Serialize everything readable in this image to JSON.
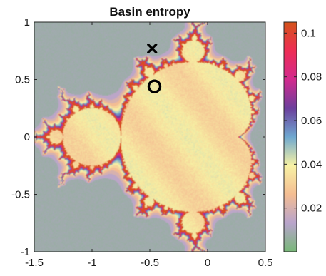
{
  "chart_data": {
    "type": "heatmap",
    "title": "Basin entropy",
    "xlabel": "",
    "ylabel": "",
    "xlim": [
      -1.5,
      0.5
    ],
    "ylim": [
      -1,
      1
    ],
    "x_ticks": [
      -1.5,
      -1,
      -0.5,
      0,
      0.5
    ],
    "y_ticks": [
      -1,
      -0.5,
      0,
      0.5,
      1
    ],
    "x_tick_labels": [
      "-1.5",
      "-1",
      "-0.5",
      "0",
      "0.5"
    ],
    "y_tick_labels": [
      "-1",
      "-0.5",
      "0",
      "0.5",
      "1"
    ],
    "colorbar": {
      "range": [
        0,
        0.105
      ],
      "ticks": [
        0.02,
        0.04,
        0.06,
        0.08,
        0.1
      ],
      "tick_labels": [
        "0.02",
        "0.04",
        "0.06",
        "0.08",
        "0.1"
      ],
      "colors": [
        "#78b878",
        "#b8a4cc",
        "#f4bd92",
        "#f8f2a4",
        "#6ea8d0",
        "#6c3f9c",
        "#d22a8e",
        "#ee2d55",
        "#d4531a"
      ]
    },
    "background_value": 0.008,
    "interior_value": 0.035,
    "markers": [
      {
        "symbol": "cross",
        "x": -0.48,
        "y": 0.77
      },
      {
        "symbol": "circle",
        "x": -0.46,
        "y": 0.44
      }
    ],
    "grid": false
  }
}
